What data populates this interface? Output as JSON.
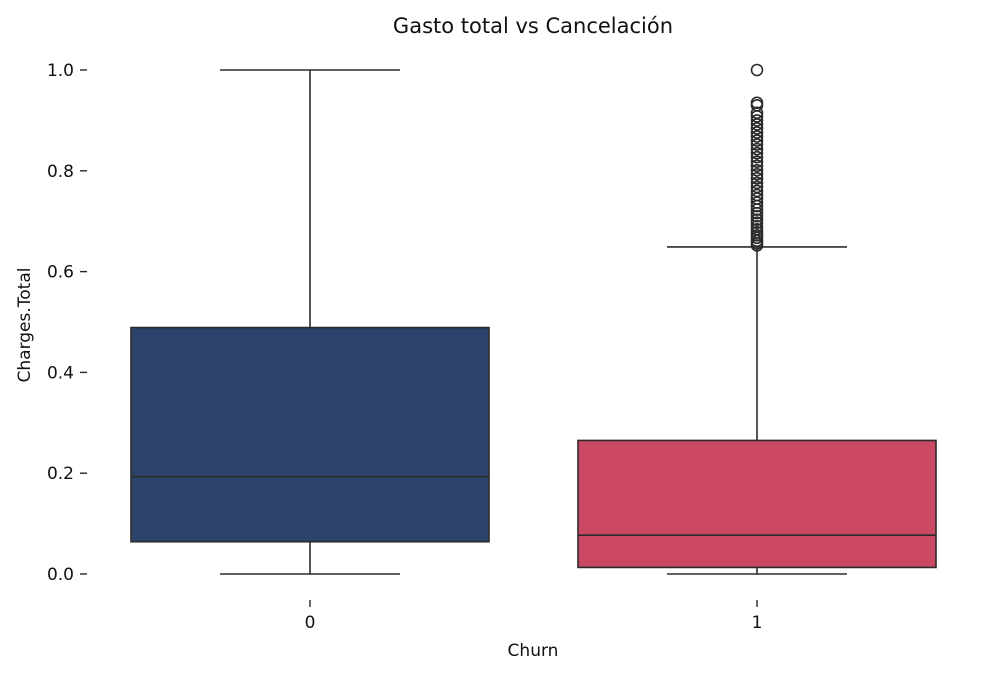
{
  "chart_data": {
    "type": "box",
    "title": "Gasto total vs Cancelación",
    "xlabel": "Churn",
    "ylabel": "Charges.Total",
    "ylim": [
      0.0,
      1.0
    ],
    "yticks": [
      "0.0",
      "0.2",
      "0.4",
      "0.6",
      "0.8",
      "1.0"
    ],
    "grid": false,
    "categories": [
      "0",
      "1"
    ],
    "boxes": [
      {
        "category": "0",
        "color": "#2c446b",
        "whisker_low": 0.0,
        "q1": 0.064,
        "median": 0.193,
        "q3": 0.489,
        "whisker_high": 1.0,
        "outliers": []
      },
      {
        "category": "1",
        "color": "#cb4862",
        "whisker_low": 0.0,
        "q1": 0.013,
        "median": 0.077,
        "q3": 0.265,
        "whisker_high": 0.649,
        "outliers": [
          0.652,
          0.656,
          0.661,
          0.667,
          0.672,
          0.678,
          0.684,
          0.69,
          0.697,
          0.703,
          0.71,
          0.716,
          0.723,
          0.73,
          0.737,
          0.745,
          0.752,
          0.76,
          0.768,
          0.776,
          0.785,
          0.793,
          0.801,
          0.81,
          0.818,
          0.827,
          0.835,
          0.843,
          0.852,
          0.86,
          0.868,
          0.876,
          0.884,
          0.892,
          0.9,
          0.908,
          0.915,
          0.93,
          0.935,
          1.0
        ]
      }
    ]
  }
}
